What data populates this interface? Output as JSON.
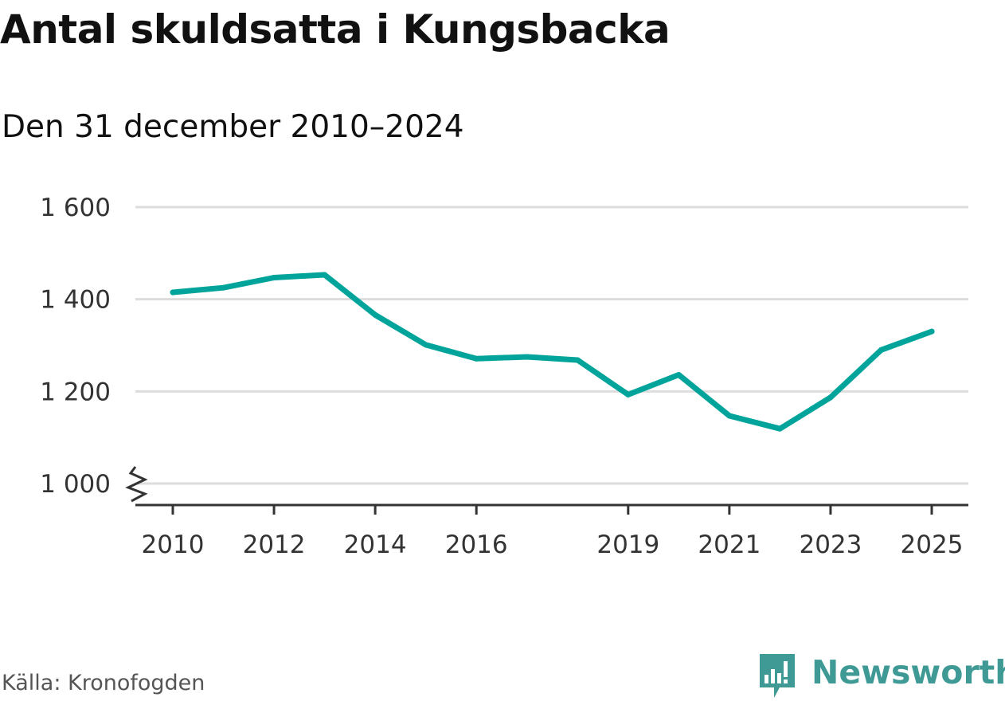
{
  "title": "Antal skuldsatta i Kungsbacka",
  "subtitle": "Den 31 december 2010–2024",
  "source": "Källa: Kronofogden",
  "brand": {
    "name": "Newsworthy",
    "icon": "newsworthy-logo-icon",
    "color": "#3f9a95"
  },
  "colors": {
    "line": "#00a49a",
    "grid": "#dddddd",
    "axis": "#333333"
  },
  "chart_data": {
    "type": "line",
    "title": "Antal skuldsatta i Kungsbacka",
    "subtitle": "Den 31 december 2010–2024",
    "xlabel": "",
    "ylabel": "",
    "grid": true,
    "legend": "none",
    "x": [
      2010,
      2011,
      2012,
      2013,
      2014,
      2015,
      2016,
      2017,
      2018,
      2019,
      2020,
      2021,
      2022,
      2023,
      2024,
      2025
    ],
    "series": [
      {
        "name": "Antal skuldsatta",
        "values": [
          1415,
          1425,
          1447,
          1453,
          1366,
          1301,
          1271,
          1275,
          1268,
          1193,
          1236,
          1147,
          1119,
          1187,
          1290,
          1330
        ]
      }
    ],
    "xlim": [
      2010,
      2025
    ],
    "ylim": [
      1000,
      1600
    ],
    "y_axis_broken": true,
    "xticks": [
      2010,
      2012,
      2014,
      2016,
      2019,
      2021,
      2023,
      2025
    ],
    "xtick_labels": [
      "2010",
      "2012",
      "2014",
      "2016",
      "2019",
      "2021",
      "2023",
      "2025"
    ],
    "yticks": [
      1000,
      1200,
      1400,
      1600
    ],
    "ytick_labels": [
      "1 000",
      "1 200",
      "1 400",
      "1 600"
    ]
  }
}
